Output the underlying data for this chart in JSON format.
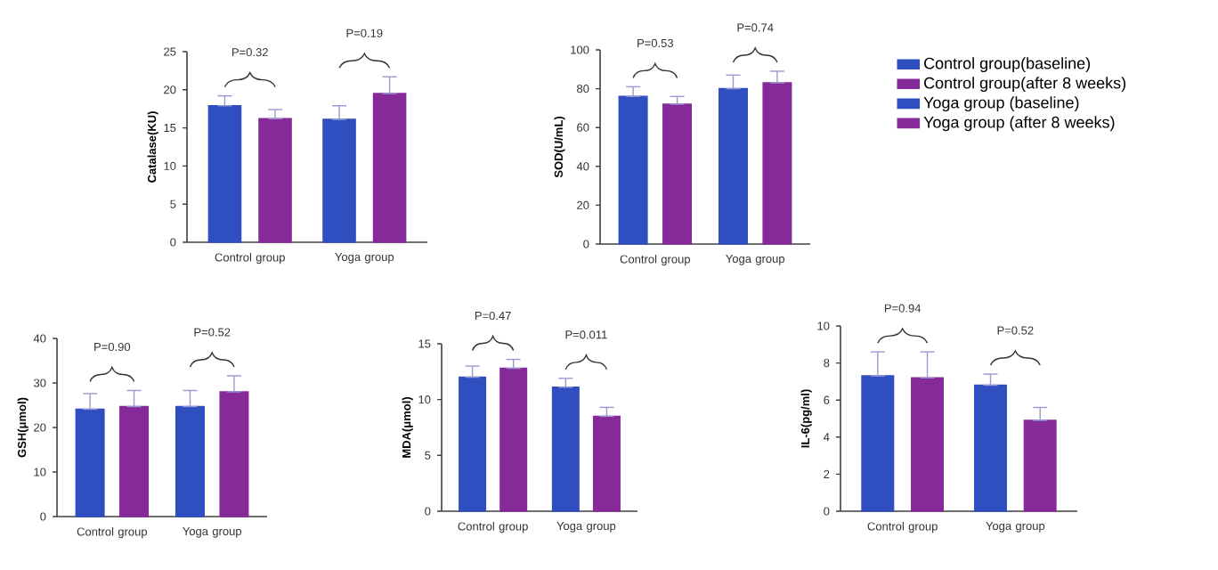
{
  "chart_data": [
    {
      "type": "bar",
      "ylabel": "Catalase(KU)",
      "categories": [
        "Control group",
        "Yoga group"
      ],
      "ylim": [
        0,
        25
      ],
      "yticks": [
        0,
        5,
        10,
        15,
        20,
        25
      ],
      "legend": "right",
      "annotations": [
        "P=0.32",
        "P=0.19"
      ],
      "series": [
        {
          "name": "Control group(baseline)",
          "color": "#2f4fc0",
          "values": [
            17.9,
            null
          ],
          "errors": [
            [
              17.9,
              19.2
            ],
            null
          ]
        },
        {
          "name": "Control group(after 8 weeks)",
          "color": "#862a9a",
          "values": [
            16.2,
            null
          ],
          "errors": [
            [
              16.2,
              17.4
            ],
            null
          ]
        },
        {
          "name": "Yoga group (baseline)",
          "color": "#2f4fc0",
          "values": [
            null,
            16.1
          ],
          "errors": [
            null,
            [
              16.1,
              17.9
            ]
          ]
        },
        {
          "name": "Yoga group (after 8 weeks)",
          "color": "#862a9a",
          "values": [
            null,
            19.5
          ],
          "errors": [
            null,
            [
              19.5,
              21.7
            ]
          ]
        }
      ]
    },
    {
      "type": "bar",
      "ylabel": "SOD(U/mL)",
      "categories": [
        "Control group",
        "Yoga group"
      ],
      "ylim": [
        0,
        100
      ],
      "yticks": [
        0,
        20,
        40,
        60,
        80,
        100
      ],
      "annotations": [
        "P=0.53",
        "P=0.74"
      ],
      "series": [
        {
          "color": "#2f4fc0",
          "values": [
            76,
            null
          ],
          "errors": [
            [
              76,
              81
            ],
            null
          ]
        },
        {
          "color": "#862a9a",
          "values": [
            72,
            null
          ],
          "errors": [
            [
              72,
              76
            ],
            null
          ]
        },
        {
          "color": "#2f4fc0",
          "values": [
            null,
            80
          ],
          "errors": [
            null,
            [
              80,
              87
            ]
          ]
        },
        {
          "color": "#862a9a",
          "values": [
            null,
            83
          ],
          "errors": [
            null,
            [
              83,
              89
            ]
          ]
        }
      ]
    },
    {
      "type": "bar",
      "ylabel": "GSH(μmol)",
      "categories": [
        "Control group",
        "Yoga group"
      ],
      "ylim": [
        0,
        40
      ],
      "yticks": [
        0,
        10,
        20,
        30,
        40
      ],
      "annotations": [
        "P=0.90",
        "P=0.52"
      ],
      "series": [
        {
          "color": "#2f4fc0",
          "values": [
            24.1,
            null
          ],
          "errors": [
            [
              24.1,
              27.6
            ],
            null
          ]
        },
        {
          "color": "#862a9a",
          "values": [
            24.7,
            null
          ],
          "errors": [
            [
              24.7,
              28.3
            ],
            null
          ]
        },
        {
          "color": "#2f4fc0",
          "values": [
            null,
            24.7
          ],
          "errors": [
            null,
            [
              24.7,
              28.3
            ]
          ]
        },
        {
          "color": "#862a9a",
          "values": [
            null,
            28.0
          ],
          "errors": [
            null,
            [
              28.0,
              31.6
            ]
          ]
        }
      ]
    },
    {
      "type": "bar",
      "ylabel": "MDA(μmol)",
      "categories": [
        "Control group",
        "Yoga group"
      ],
      "ylim": [
        0,
        15
      ],
      "yticks": [
        0,
        5,
        10,
        15
      ],
      "annotations": [
        "P=0.47",
        "P=0.011"
      ],
      "series": [
        {
          "color": "#2f4fc0",
          "values": [
            12.0,
            null
          ],
          "errors": [
            [
              12.0,
              13.0
            ],
            null
          ]
        },
        {
          "color": "#862a9a",
          "values": [
            12.8,
            null
          ],
          "errors": [
            [
              12.8,
              13.6
            ],
            null
          ]
        },
        {
          "color": "#2f4fc0",
          "values": [
            null,
            11.1
          ],
          "errors": [
            null,
            [
              11.1,
              11.9
            ]
          ]
        },
        {
          "color": "#862a9a",
          "values": [
            null,
            8.5
          ],
          "errors": [
            null,
            [
              8.5,
              9.3
            ]
          ]
        }
      ]
    },
    {
      "type": "bar",
      "ylabel": "IL-6(pg/ml)",
      "categories": [
        "Control group",
        "Yoga group"
      ],
      "ylim": [
        0,
        10
      ],
      "yticks": [
        0,
        2,
        4,
        6,
        8,
        10
      ],
      "annotations": [
        "P=0.94",
        "P=0.52"
      ],
      "series": [
        {
          "color": "#2f4fc0",
          "values": [
            7.3,
            null
          ],
          "errors": [
            [
              7.3,
              8.6
            ],
            null
          ]
        },
        {
          "color": "#862a9a",
          "values": [
            7.2,
            null
          ],
          "errors": [
            [
              7.2,
              8.6
            ],
            null
          ]
        },
        {
          "color": "#2f4fc0",
          "values": [
            null,
            6.8
          ],
          "errors": [
            null,
            [
              6.8,
              7.4
            ]
          ]
        },
        {
          "color": "#862a9a",
          "values": [
            null,
            4.9
          ],
          "errors": [
            null,
            [
              4.9,
              5.6
            ]
          ]
        }
      ]
    }
  ]
}
